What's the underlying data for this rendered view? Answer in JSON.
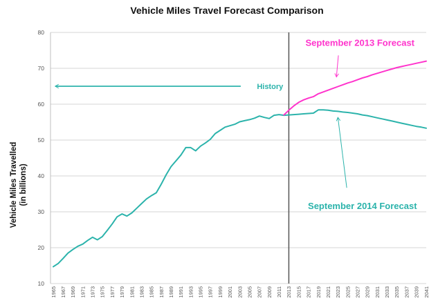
{
  "chart_data": {
    "type": "line",
    "title": "Vehicle Miles Travel Forecast Comparison",
    "ylabel": [
      "Vehicle Miles Travelled",
      "(in billions)"
    ],
    "xlabel": "",
    "ylim": [
      10,
      80
    ],
    "yticks": [
      10,
      20,
      30,
      40,
      50,
      60,
      70,
      80
    ],
    "xlim": [
      1965,
      2041
    ],
    "xticks": [
      1965,
      1967,
      1969,
      1971,
      1973,
      1975,
      1977,
      1979,
      1981,
      1983,
      1985,
      1987,
      1989,
      1991,
      1993,
      1995,
      1997,
      1999,
      2001,
      2003,
      2005,
      2007,
      2009,
      2011,
      2013,
      2015,
      2017,
      2019,
      2021,
      2023,
      2025,
      2027,
      2029,
      2031,
      2033,
      2035,
      2037,
      2039,
      2041
    ],
    "grid": "horizontal",
    "reference_line": {
      "x": 2013,
      "color": "#555555"
    },
    "series": [
      {
        "name": "History",
        "color": "#2bb3ab",
        "x": [
          1965,
          1966,
          1967,
          1968,
          1969,
          1970,
          1971,
          1972,
          1973,
          1974,
          1975,
          1976,
          1977,
          1978,
          1979,
          1980,
          1981,
          1982,
          1983,
          1984,
          1985,
          1986,
          1987,
          1988,
          1989,
          1990,
          1991,
          1992,
          1993,
          1994,
          1995,
          1996,
          1997,
          1998,
          1999,
          2000,
          2001,
          2002,
          2003,
          2004,
          2005,
          2006,
          2007,
          2008,
          2009,
          2010,
          2011,
          2012,
          2013
        ],
        "values": [
          14.7,
          15.6,
          17.0,
          18.5,
          19.5,
          20.4,
          21.0,
          22.0,
          22.9,
          22.2,
          23.1,
          24.8,
          26.6,
          28.6,
          29.4,
          28.8,
          29.7,
          31.0,
          32.3,
          33.6,
          34.5,
          35.3,
          37.7,
          40.3,
          42.6,
          44.2,
          45.8,
          47.9,
          47.9,
          47.0,
          48.3,
          49.2,
          50.2,
          51.8,
          52.7,
          53.6,
          54.0,
          54.4,
          55.1,
          55.4,
          55.7,
          56.1,
          56.7,
          56.3,
          56.0,
          56.9,
          57.1,
          56.9,
          57.0
        ]
      },
      {
        "name": "September 2014 Forecast",
        "color": "#2bb3ab",
        "x": [
          2013,
          2014,
          2015,
          2016,
          2017,
          2018,
          2019,
          2020,
          2021,
          2022,
          2023,
          2024,
          2025,
          2026,
          2027,
          2028,
          2029,
          2030,
          2031,
          2032,
          2033,
          2034,
          2035,
          2036,
          2037,
          2038,
          2039,
          2040,
          2041
        ],
        "values": [
          57.0,
          57.1,
          57.2,
          57.3,
          57.4,
          57.5,
          58.4,
          58.4,
          58.3,
          58.1,
          58.0,
          57.8,
          57.7,
          57.5,
          57.3,
          57.0,
          56.8,
          56.5,
          56.2,
          55.9,
          55.6,
          55.3,
          55.0,
          54.7,
          54.4,
          54.1,
          53.8,
          53.6,
          53.3
        ]
      },
      {
        "name": "September 2013 Forecast",
        "color": "#ff33cc",
        "x": [
          2012,
          2013,
          2014,
          2015,
          2016,
          2017,
          2018,
          2019,
          2020,
          2021,
          2022,
          2023,
          2024,
          2025,
          2026,
          2027,
          2028,
          2029,
          2030,
          2031,
          2032,
          2033,
          2034,
          2035,
          2036,
          2037,
          2038,
          2039,
          2040,
          2041
        ],
        "values": [
          57.0,
          58.3,
          59.5,
          60.5,
          61.2,
          61.7,
          62.1,
          62.9,
          63.4,
          63.9,
          64.4,
          64.9,
          65.4,
          65.9,
          66.3,
          66.8,
          67.3,
          67.7,
          68.2,
          68.6,
          69.0,
          69.4,
          69.8,
          70.2,
          70.5,
          70.8,
          71.1,
          71.4,
          71.7,
          72.0
        ]
      }
    ],
    "annotations": [
      {
        "id": "history",
        "text": "History",
        "color": "#2bb3ab",
        "arrow": "left",
        "arrow_to": {
          "x": 1965.4,
          "y": 65
        },
        "arrow_from": {
          "x": 2003.2,
          "y": 65
        },
        "label_at": {
          "x": 2006.5,
          "y": 65
        }
      },
      {
        "id": "sep2013",
        "text": "September 2013 Forecast",
        "color": "#ff33cc",
        "arrow": "down",
        "arrow_from": {
          "x": 2023.1,
          "y": 73.6
        },
        "arrow_to": {
          "x": 2022.7,
          "y": 67.6
        },
        "label_at": {
          "x": 2027.5,
          "y": 77
        }
      },
      {
        "id": "sep2014",
        "text": "September 2014 Forecast",
        "color": "#2bb3ab",
        "arrow": "up",
        "arrow_from": {
          "x": 2024.8,
          "y": 36.7
        },
        "arrow_to": {
          "x": 2023.0,
          "y": 56.3
        },
        "label_at": {
          "x": 2028.0,
          "y": 31.5
        }
      }
    ]
  }
}
